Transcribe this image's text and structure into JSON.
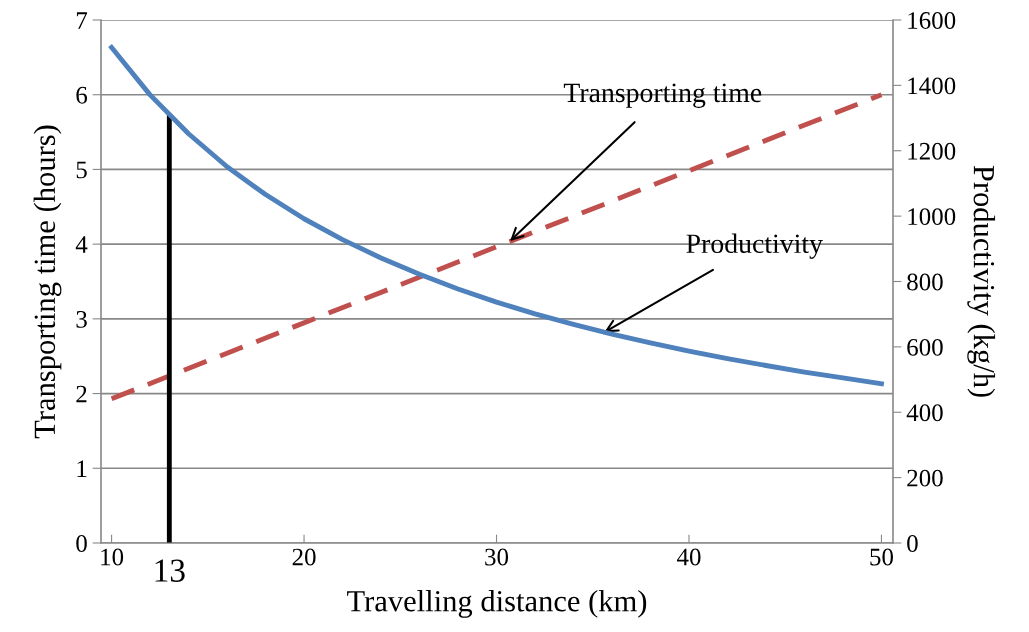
{
  "chart_data": {
    "type": "line",
    "xlabel": "Travelling distance (km)",
    "ylabel": "Transporting time (hours)",
    "y2label": "Productivity (kg/h)",
    "xlim": [
      9.45,
      50.6
    ],
    "xticks": [
      10,
      20,
      30,
      40,
      50
    ],
    "ylim": [
      0,
      7
    ],
    "yticks": [
      0,
      1,
      2,
      3,
      4,
      5,
      6,
      7
    ],
    "y2lim": [
      0,
      1600
    ],
    "y2ticks": [
      0,
      200,
      400,
      600,
      800,
      1000,
      1200,
      1400,
      1600
    ],
    "grid": "y",
    "series": [
      {
        "color": "#4f81bd",
        "line_style": "solid",
        "axis": "y2",
        "x": [
          10,
          12,
          14,
          16,
          18,
          20,
          22,
          24,
          26,
          28,
          30,
          32,
          34,
          36,
          38,
          40,
          42,
          44,
          46,
          48,
          50
        ],
        "values": [
          1516,
          1371,
          1252,
          1151,
          1066,
          992,
          928,
          872,
          822,
          777,
          737,
          701,
          669,
          639,
          612,
          587,
          564,
          543,
          523,
          505,
          487
        ]
      },
      {
        "color": "#c0504d",
        "line_style": "dashed",
        "x": [
          10,
          50
        ],
        "values": [
          1.93,
          6.0
        ]
      },
      {
        "color": "#000000",
        "line_style": "solid",
        "x": [
          13,
          13
        ],
        "values": [
          0,
          5.7
        ]
      }
    ],
    "annotations": [
      {
        "text": "Transporting time",
        "x": 30.7,
        "y": 4.04
      },
      {
        "text": "Productivity",
        "x": 35.6,
        "y": 2.82
      },
      {
        "text": "13",
        "x": 13,
        "y": 0
      }
    ]
  }
}
